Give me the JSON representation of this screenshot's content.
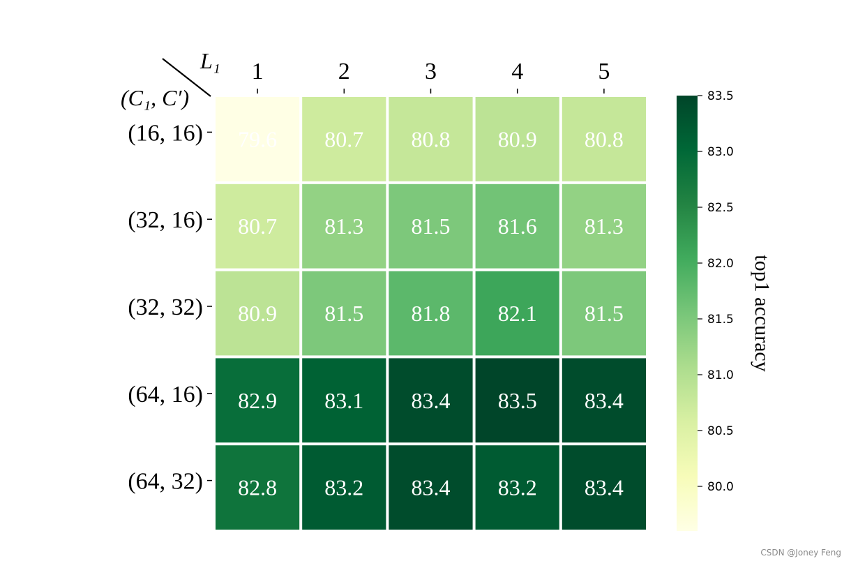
{
  "chart_data": {
    "type": "heatmap",
    "x_axis_label": "L₁",
    "y_axis_label": "(C₁, C′)",
    "x_categories": [
      "1",
      "2",
      "3",
      "4",
      "5"
    ],
    "y_categories": [
      "(16, 16)",
      "(32, 16)",
      "(32, 32)",
      "(64, 16)",
      "(64, 32)"
    ],
    "values": [
      [
        79.6,
        80.7,
        80.8,
        80.9,
        80.8
      ],
      [
        80.7,
        81.3,
        81.5,
        81.6,
        81.3
      ],
      [
        80.9,
        81.5,
        81.8,
        82.1,
        81.5
      ],
      [
        82.9,
        83.1,
        83.4,
        83.5,
        83.4
      ],
      [
        82.8,
        83.2,
        83.4,
        83.2,
        83.4
      ]
    ],
    "colorbar": {
      "label": "top1 accuracy",
      "range": [
        79.6,
        83.5
      ],
      "ticks": [
        "80.0",
        "80.5",
        "81.0",
        "81.5",
        "82.0",
        "82.5",
        "83.0",
        "83.5"
      ],
      "colormap": "YlGn",
      "stops": [
        "#ffffe5",
        "#f7fcb9",
        "#d9f0a3",
        "#addd8e",
        "#78c679",
        "#41ab5d",
        "#238443",
        "#006837",
        "#004529"
      ]
    },
    "cell_text_color": "#ffffff",
    "grid": false
  },
  "watermark": "CSDN @Joney Feng"
}
